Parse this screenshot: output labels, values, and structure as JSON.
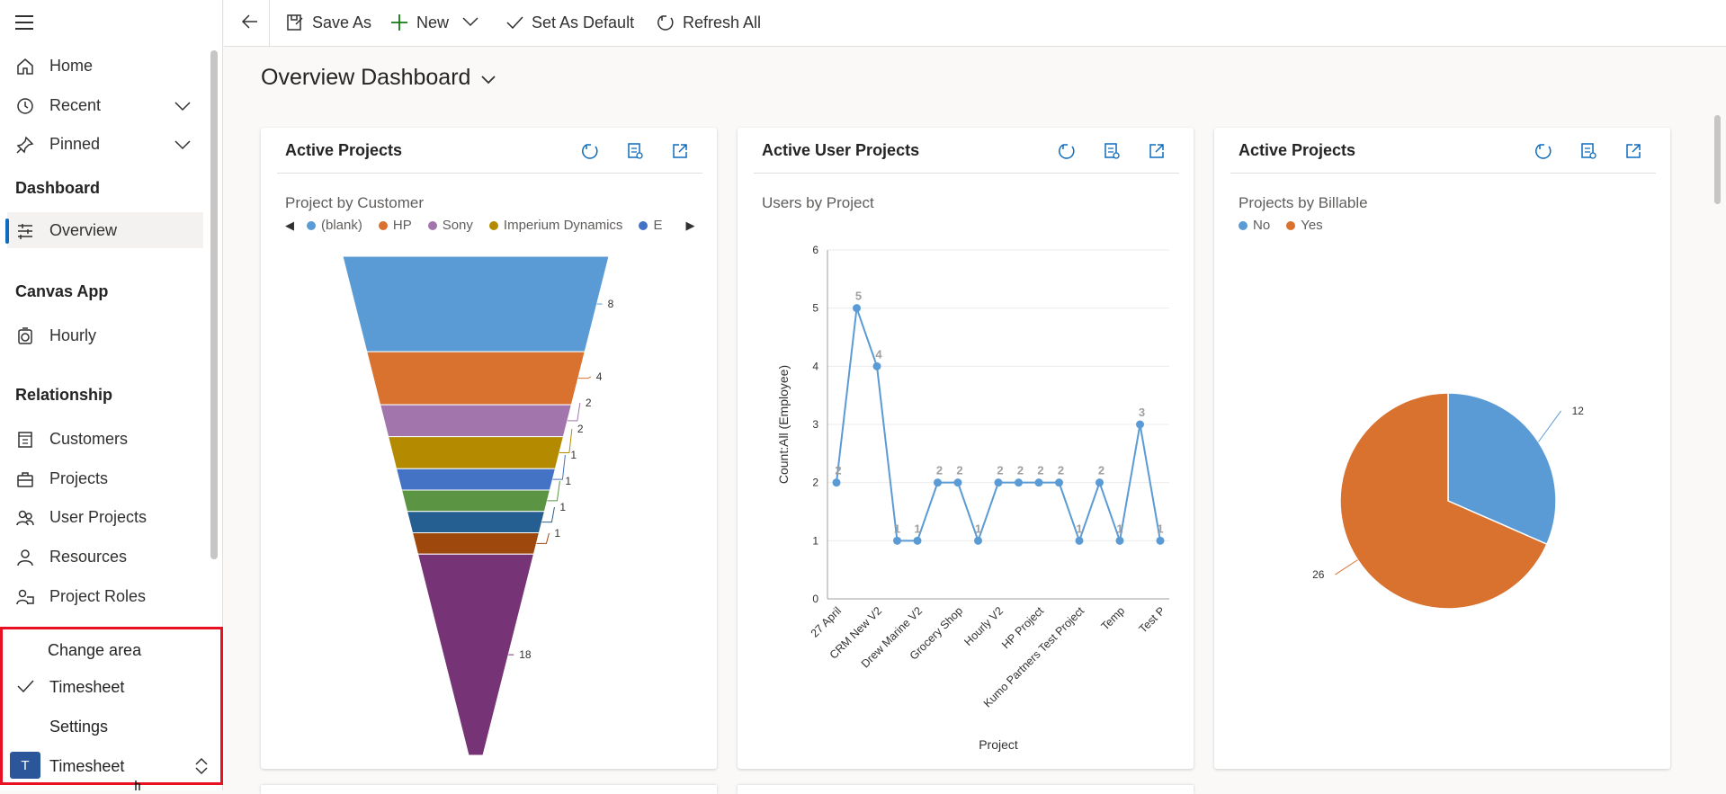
{
  "sidebar": {
    "nav": [
      {
        "label": "Home",
        "icon": "home-icon"
      },
      {
        "label": "Recent",
        "icon": "clock-icon"
      },
      {
        "label": "Pinned",
        "icon": "pin-icon"
      }
    ],
    "section_dashboard": "Dashboard",
    "overview_label": "Overview",
    "section_canvas": "Canvas App",
    "hourly_label": "Hourly",
    "section_relationship": "Relationship",
    "relationship_items": [
      {
        "label": "Customers",
        "icon": "customers-icon"
      },
      {
        "label": "Projects",
        "icon": "briefcase-icon"
      },
      {
        "label": "User Projects",
        "icon": "people-icon"
      },
      {
        "label": "Resources",
        "icon": "person-icon"
      },
      {
        "label": "Project Roles",
        "icon": "roles-icon"
      }
    ]
  },
  "area_popup": {
    "title": "Change area",
    "options": [
      "Timesheet",
      "Settings"
    ],
    "selected": "Timesheet",
    "switcher_initial": "T",
    "switcher_label": "Timesheet"
  },
  "toolbar": {
    "save_as": "Save As",
    "new": "New",
    "set_default": "Set As Default",
    "refresh_all": "Refresh All"
  },
  "page": {
    "title": "Overview Dashboard"
  },
  "cards": [
    {
      "title": "Active Projects",
      "subtitle": "Project by Customer",
      "legend": [
        {
          "label": "(blank)",
          "color": "#5b9bd5"
        },
        {
          "label": "HP",
          "color": "#d9712f"
        },
        {
          "label": "Sony",
          "color": "#a276ad"
        },
        {
          "label": "Imperium Dynamics",
          "color": "#b38a00"
        },
        {
          "label": "E",
          "color": "#4472c4"
        }
      ]
    },
    {
      "title": "Active User Projects",
      "subtitle": "Users by Project"
    },
    {
      "title": "Active Projects",
      "subtitle": "Projects by Billable",
      "legend": [
        {
          "label": "No",
          "color": "#5b9bd5"
        },
        {
          "label": "Yes",
          "color": "#d9712f"
        }
      ]
    }
  ],
  "chart_data": [
    {
      "type": "funnel",
      "title": "Project by Customer",
      "values": [
        8,
        4,
        2,
        2,
        1,
        1,
        1,
        1,
        18
      ],
      "colors": [
        "#5b9bd5",
        "#d9712f",
        "#a276ad",
        "#b38a00",
        "#4472c4",
        "#5b9543",
        "#255e91",
        "#9e480e",
        "#763476"
      ]
    },
    {
      "type": "line",
      "title": "Users by Project",
      "xlabel": "Project",
      "ylabel": "Count:All (Employee)",
      "ylim": [
        0,
        6
      ],
      "yticks": [
        0,
        1,
        2,
        3,
        4,
        5,
        6
      ],
      "values": [
        2,
        5,
        4,
        1,
        1,
        2,
        2,
        1,
        2,
        2,
        2,
        2,
        1,
        2,
        1,
        3,
        1
      ],
      "tick_labels": [
        "27 April",
        "CRM New V2",
        "Drew Marine V2",
        "Grocery Shop",
        "Hourly V2",
        "HP Project",
        "Kumo Partners Test Project",
        "Temp",
        "Test P"
      ],
      "color": "#5b9bd5"
    },
    {
      "type": "pie",
      "title": "Projects by Billable",
      "slices": [
        {
          "name": "No",
          "value": 12,
          "color": "#5b9bd5"
        },
        {
          "name": "Yes",
          "value": 26,
          "color": "#d9712f"
        }
      ]
    }
  ]
}
